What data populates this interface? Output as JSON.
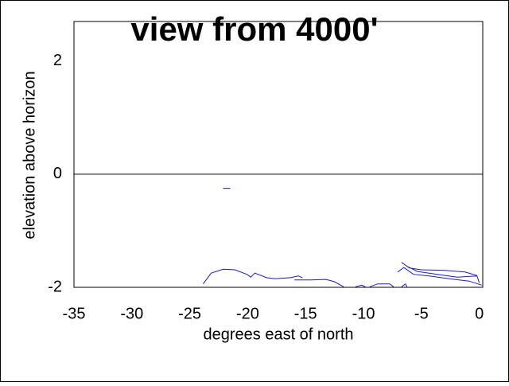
{
  "chart_data": {
    "type": "line",
    "title": "view from 4000'",
    "x_label": "degrees east of north",
    "y_label": "elevation above horizon",
    "xlim": [
      -35,
      0.3
    ],
    "ylim": [
      -2,
      2.7
    ],
    "xticks": [
      -35,
      -30,
      -25,
      -20,
      -15,
      -10,
      -5,
      0
    ],
    "yticks": [
      -2,
      0,
      2
    ],
    "grid": false,
    "zero_line": true,
    "series": [
      {
        "color": "#1a1acc",
        "x": [
          -22.12,
          -21.5,
          null,
          -23.84,
          -23.15,
          -22.12,
          -21.1,
          -20.07,
          -19.73,
          -19.38,
          -18.36,
          -17.67,
          -16.3,
          -15.62,
          -15.27,
          null,
          -15.96,
          -14.59,
          -13.22,
          -12.53,
          -11.71,
          null,
          -10.68,
          -10.14,
          -9.79,
          null,
          -9.45,
          -8.77,
          -7.74,
          -7.4,
          null,
          -6.71,
          -6.37,
          -6.23,
          null,
          -6.71,
          -6.03,
          -5.0,
          -2.95,
          -1.23,
          -0.21,
          0,
          null,
          -6.23,
          -5.34,
          -3.63,
          -1.92,
          -0.21,
          null,
          -7.05,
          -6.51,
          -5.68,
          -4.32,
          -2.6,
          -0.89,
          0.21
        ],
        "values": [
          -0.25,
          -0.25,
          null,
          -1.94,
          -1.75,
          -1.68,
          -1.69,
          -1.77,
          -1.82,
          -1.75,
          -1.83,
          -1.85,
          -1.83,
          -1.8,
          -1.83,
          null,
          -1.87,
          -1.87,
          -1.86,
          -1.9,
          -1.99,
          null,
          -1.99,
          -1.96,
          -2.0,
          null,
          -1.99,
          -1.94,
          -1.94,
          -1.99,
          null,
          -1.99,
          -1.94,
          -2.0,
          null,
          -1.56,
          -1.66,
          -1.69,
          -1.7,
          -1.73,
          -1.79,
          -1.92,
          null,
          -1.63,
          -1.72,
          -1.77,
          -1.82,
          -1.8,
          null,
          -1.73,
          -1.65,
          -1.77,
          -1.8,
          -1.85,
          -1.89,
          -1.96
        ]
      }
    ]
  }
}
